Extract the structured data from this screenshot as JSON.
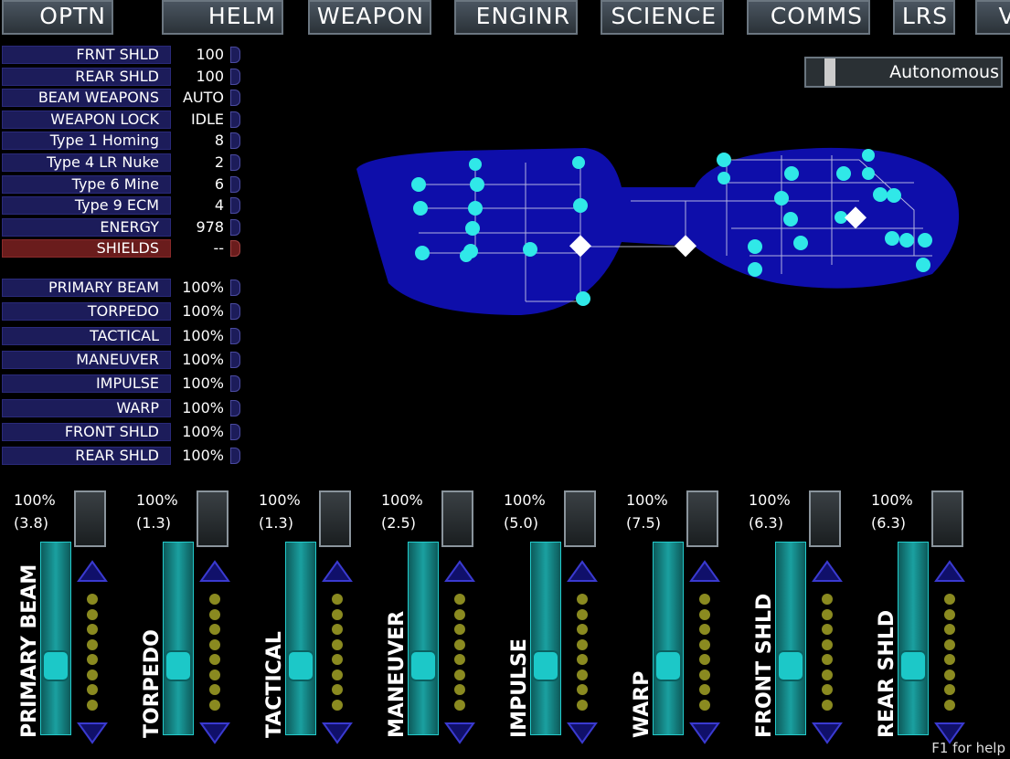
{
  "tabs": [
    "OPTN",
    "HELM",
    "WEAPON",
    "ENGINR",
    "SCIENCE",
    "COMMS",
    "LRS",
    "VI"
  ],
  "status": [
    {
      "label": "FRNT SHLD",
      "value": "100"
    },
    {
      "label": "REAR SHLD",
      "value": "100"
    },
    {
      "label": "BEAM WEAPONS",
      "value": "AUTO"
    },
    {
      "label": "WEAPON LOCK",
      "value": "IDLE"
    },
    {
      "label": "Type 1 Homing",
      "value": "8"
    },
    {
      "label": "Type 4 LR Nuke",
      "value": "2"
    },
    {
      "label": "Type 6 Mine",
      "value": "6"
    },
    {
      "label": "Type 9 ECM",
      "value": "4"
    },
    {
      "label": "ENERGY",
      "value": "978"
    },
    {
      "label": "SHIELDS",
      "value": "--"
    }
  ],
  "systems": [
    {
      "label": "PRIMARY BEAM",
      "value": "100%"
    },
    {
      "label": "TORPEDO",
      "value": "100%"
    },
    {
      "label": "TACTICAL",
      "value": "100%"
    },
    {
      "label": "MANEUVER",
      "value": "100%"
    },
    {
      "label": "IMPULSE",
      "value": "100%"
    },
    {
      "label": "WARP",
      "value": "100%"
    },
    {
      "label": "FRONT SHLD",
      "value": "100%"
    },
    {
      "label": "REAR SHLD",
      "value": "100%"
    }
  ],
  "mode": "Autonomous",
  "sliders": [
    {
      "label": "PRIMARY BEAM",
      "percent": "100%",
      "power": "(3.8)"
    },
    {
      "label": "TORPEDO",
      "percent": "100%",
      "power": "(1.3)"
    },
    {
      "label": "TACTICAL",
      "percent": "100%",
      "power": "(1.3)"
    },
    {
      "label": "MANEUVER",
      "percent": "100%",
      "power": "(2.5)"
    },
    {
      "label": "IMPULSE",
      "percent": "100%",
      "power": "(5.0)"
    },
    {
      "label": "WARP",
      "percent": "100%",
      "power": "(7.5)"
    },
    {
      "label": "FRONT SHLD",
      "percent": "100%",
      "power": "(6.3)"
    },
    {
      "label": "REAR SHLD",
      "percent": "100%",
      "power": "(6.3)"
    }
  ],
  "help": "F1 for help"
}
